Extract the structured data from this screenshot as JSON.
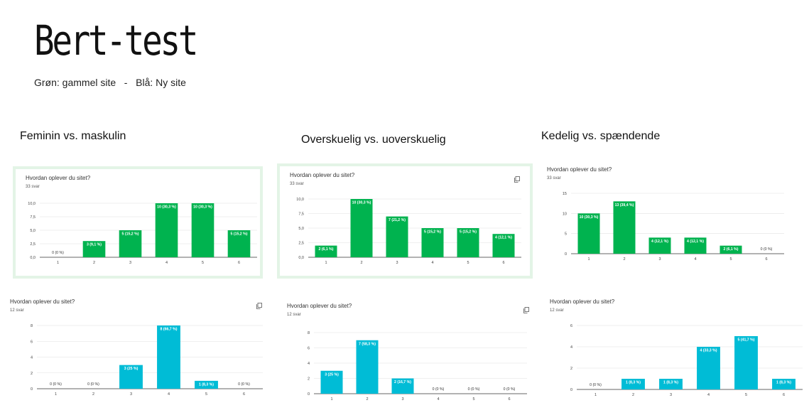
{
  "page": {
    "title": "Bert-test",
    "subtitle": "Grøn: gammel site   -   Blå: Ny site"
  },
  "colors": {
    "old": "#00b34f",
    "new": "#00bcd6"
  },
  "sections": [
    {
      "heading": "Feminin vs. maskulin"
    },
    {
      "heading": "Overskuelig vs. uoverskuelig"
    },
    {
      "heading": "Kedelig vs. spændende"
    }
  ],
  "chart_data": [
    {
      "id": "c1",
      "type": "bar",
      "title": "Hvordan oplever du sitet?",
      "count_label": "33 svar",
      "categories": [
        "1",
        "2",
        "3",
        "4",
        "5",
        "6"
      ],
      "values": [
        0,
        3,
        5,
        10,
        10,
        5
      ],
      "data_labels": [
        "0 (0 %)",
        "3 (9,1 %)",
        "5 (15,2 %)",
        "10 (30,3 %)",
        "10 (30,3 %)",
        "5 (15,2 %)"
      ],
      "yticks": [
        "0,0",
        "2,5",
        "5,0",
        "7,5",
        "10,0"
      ],
      "ytick_values": [
        0,
        2.5,
        5,
        7.5,
        10
      ],
      "ylim": [
        0,
        10
      ],
      "color": "#00b34f",
      "copy_icon": false
    },
    {
      "id": "c2",
      "type": "bar",
      "title": "Hvordan oplever du sitet?",
      "count_label": "33 svar",
      "categories": [
        "1",
        "2",
        "3",
        "4",
        "5",
        "6"
      ],
      "values": [
        2,
        10,
        7,
        5,
        5,
        4
      ],
      "data_labels": [
        "2 (6,1 %)",
        "10 (30,3 %)",
        "7 (21,2 %)",
        "5 (15,2 %)",
        "5 (15,2 %)",
        "4 (12,1 %)"
      ],
      "yticks": [
        "0,0",
        "2,5",
        "5,0",
        "7,5",
        "10,0"
      ],
      "ytick_values": [
        0,
        2.5,
        5,
        7.5,
        10
      ],
      "ylim": [
        0,
        10
      ],
      "color": "#00b34f",
      "copy_icon": true
    },
    {
      "id": "c3",
      "type": "bar",
      "title": "Hvordan oplever du sitet?",
      "count_label": "33 svar",
      "categories": [
        "1",
        "2",
        "3",
        "4",
        "5",
        "6"
      ],
      "values": [
        10,
        13,
        4,
        4,
        2,
        0
      ],
      "data_labels": [
        "10 (30,3 %)",
        "13 (39,4 %)",
        "4 (12,1 %)",
        "4 (12,1 %)",
        "2 (6,1 %)",
        "0 (0 %)"
      ],
      "yticks": [
        "0",
        "5",
        "10",
        "15"
      ],
      "ytick_values": [
        0,
        5,
        10,
        15
      ],
      "ylim": [
        0,
        15
      ],
      "color": "#00b34f",
      "copy_icon": false
    },
    {
      "id": "c4",
      "type": "bar",
      "title": "Hvordan oplever du sitet?",
      "count_label": "12 svar",
      "categories": [
        "1",
        "2",
        "3",
        "4",
        "5",
        "6"
      ],
      "values": [
        0,
        0,
        3,
        8,
        1,
        0
      ],
      "data_labels": [
        "0 (0 %)",
        "0 (0 %)",
        "3 (25 %)",
        "8 (66,7 %)",
        "1 (8,3 %)",
        "0 (0 %)"
      ],
      "yticks": [
        "0",
        "2",
        "4",
        "6",
        "8"
      ],
      "ytick_values": [
        0,
        2,
        4,
        6,
        8
      ],
      "ylim": [
        0,
        8
      ],
      "color": "#00bcd6",
      "copy_icon": true
    },
    {
      "id": "c5",
      "type": "bar",
      "title": "Hvordan oplever du sitet?",
      "count_label": "12 svar",
      "categories": [
        "1",
        "2",
        "3",
        "4",
        "5",
        "6"
      ],
      "values": [
        3,
        7,
        2,
        0,
        0,
        0
      ],
      "data_labels": [
        "3 (25 %)",
        "7 (58,3 %)",
        "2 (16,7 %)",
        "0 (0 %)",
        "0 (0 %)",
        "0 (0 %)"
      ],
      "yticks": [
        "0",
        "2",
        "4",
        "6",
        "8"
      ],
      "ytick_values": [
        0,
        2,
        4,
        6,
        8
      ],
      "ylim": [
        0,
        8
      ],
      "color": "#00bcd6",
      "copy_icon": true
    },
    {
      "id": "c6",
      "type": "bar",
      "title": "Hvordan oplever du sitet?",
      "count_label": "12 svar",
      "categories": [
        "1",
        "2",
        "3",
        "4",
        "5",
        "6"
      ],
      "values": [
        0,
        1,
        1,
        4,
        5,
        1
      ],
      "data_labels": [
        "0 (0 %)",
        "1 (8,3 %)",
        "1 (8,3 %)",
        "4 (33,3 %)",
        "5 (41,7 %)",
        "1 (8,3 %)"
      ],
      "yticks": [
        "0",
        "2",
        "4",
        "6"
      ],
      "ytick_values": [
        0,
        2,
        4,
        6
      ],
      "ylim": [
        0,
        6
      ],
      "color": "#00bcd6",
      "copy_icon": false
    }
  ]
}
